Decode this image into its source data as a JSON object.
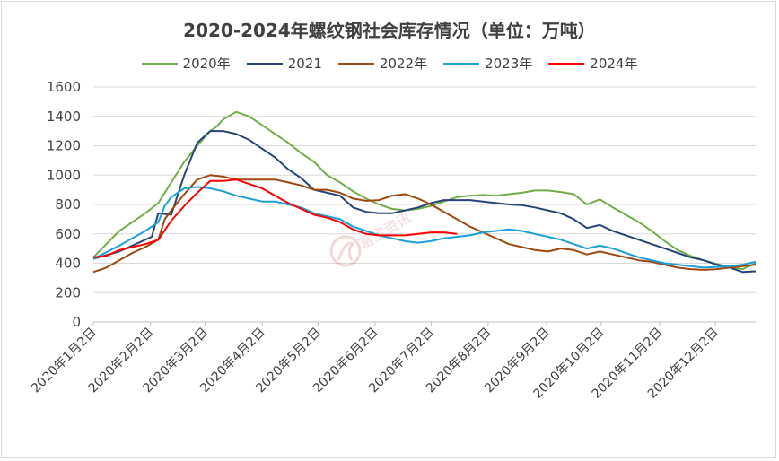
{
  "chart_data": {
    "type": "line",
    "title": "2020-2024年螺纹钢社会库存情况（单位：万吨）",
    "ylim": [
      0,
      1600
    ],
    "yticks": [
      0,
      200,
      400,
      600,
      800,
      1000,
      1200,
      1400,
      1600
    ],
    "grid": "horizontal",
    "legend_position": "top",
    "x_range": [
      0,
      51
    ],
    "x_tick_positions": [
      0,
      4.4,
      8.6,
      13,
      17.3,
      21.7,
      26,
      30.4,
      34.9,
      39.1,
      43.6,
      47.9
    ],
    "x_tick_labels": [
      "2020年1月2日",
      "2020年2月2日",
      "2020年3月2日",
      "2020年4月2日",
      "2020年5月2日",
      "2020年6月2日",
      "2020年7月2日",
      "2020年8月2日",
      "2020年9月2日",
      "2020年10月2日",
      "2020年11月2日",
      "2020年12月2日"
    ],
    "watermark": "富宝资讯",
    "series": [
      {
        "name": "2020年",
        "color": "#70ad47",
        "points": [
          [
            0,
            440
          ],
          [
            2,
            620
          ],
          [
            4,
            740
          ],
          [
            5,
            810
          ],
          [
            6,
            950
          ],
          [
            7,
            1090
          ],
          [
            8,
            1200
          ],
          [
            9,
            1300
          ],
          [
            9.5,
            1330
          ],
          [
            10,
            1380
          ],
          [
            11,
            1430
          ],
          [
            12,
            1400
          ],
          [
            13,
            1340
          ],
          [
            14,
            1280
          ],
          [
            15,
            1220
          ],
          [
            16,
            1150
          ],
          [
            17,
            1090
          ],
          [
            18,
            1000
          ],
          [
            19,
            950
          ],
          [
            20,
            890
          ],
          [
            21,
            840
          ],
          [
            22,
            800
          ],
          [
            23,
            770
          ],
          [
            24,
            760
          ],
          [
            25,
            770
          ],
          [
            26,
            790
          ],
          [
            27,
            820
          ],
          [
            28,
            850
          ],
          [
            29,
            860
          ],
          [
            30,
            865
          ],
          [
            31,
            860
          ],
          [
            32,
            870
          ],
          [
            33,
            880
          ],
          [
            34,
            895
          ],
          [
            35,
            895
          ],
          [
            36,
            885
          ],
          [
            37,
            870
          ],
          [
            38,
            800
          ],
          [
            39,
            835
          ],
          [
            40,
            780
          ],
          [
            41,
            730
          ],
          [
            42,
            680
          ],
          [
            43,
            620
          ],
          [
            44,
            550
          ],
          [
            45,
            490
          ],
          [
            46,
            450
          ],
          [
            47,
            420
          ],
          [
            48,
            395
          ],
          [
            49,
            375
          ],
          [
            50,
            360
          ],
          [
            51,
            400
          ]
        ]
      },
      {
        "name": "2021",
        "color": "#264478",
        "points": [
          [
            0,
            430
          ],
          [
            2,
            480
          ],
          [
            4,
            560
          ],
          [
            4.5,
            580
          ],
          [
            5,
            740
          ],
          [
            6,
            730
          ],
          [
            7,
            1000
          ],
          [
            8,
            1220
          ],
          [
            9,
            1300
          ],
          [
            10,
            1300
          ],
          [
            11,
            1280
          ],
          [
            12,
            1240
          ],
          [
            13,
            1180
          ],
          [
            14,
            1120
          ],
          [
            15,
            1040
          ],
          [
            16,
            980
          ],
          [
            17,
            900
          ],
          [
            18,
            880
          ],
          [
            19,
            860
          ],
          [
            20,
            780
          ],
          [
            21,
            750
          ],
          [
            22,
            740
          ],
          [
            23,
            740
          ],
          [
            24,
            760
          ],
          [
            25,
            780
          ],
          [
            26,
            810
          ],
          [
            27,
            830
          ],
          [
            28,
            830
          ],
          [
            29,
            830
          ],
          [
            30,
            820
          ],
          [
            31,
            810
          ],
          [
            32,
            800
          ],
          [
            33,
            795
          ],
          [
            34,
            780
          ],
          [
            35,
            760
          ],
          [
            36,
            740
          ],
          [
            37,
            700
          ],
          [
            38,
            640
          ],
          [
            39,
            660
          ],
          [
            40,
            620
          ],
          [
            41,
            590
          ],
          [
            42,
            560
          ],
          [
            43,
            530
          ],
          [
            44,
            500
          ],
          [
            45,
            470
          ],
          [
            46,
            440
          ],
          [
            47,
            420
          ],
          [
            48,
            390
          ],
          [
            49,
            370
          ],
          [
            50,
            340
          ],
          [
            51,
            345
          ]
        ]
      },
      {
        "name": "2022年",
        "color": "#9e480e",
        "points": [
          [
            0,
            340
          ],
          [
            1,
            370
          ],
          [
            2,
            420
          ],
          [
            3,
            470
          ],
          [
            4,
            510
          ],
          [
            5,
            560
          ],
          [
            5.5,
            700
          ],
          [
            6,
            760
          ],
          [
            7,
            870
          ],
          [
            8,
            970
          ],
          [
            9,
            1000
          ],
          [
            10,
            990
          ],
          [
            11,
            970
          ],
          [
            12,
            970
          ],
          [
            13,
            970
          ],
          [
            14,
            970
          ],
          [
            15,
            950
          ],
          [
            16,
            930
          ],
          [
            17,
            900
          ],
          [
            18,
            900
          ],
          [
            19,
            880
          ],
          [
            20,
            840
          ],
          [
            21,
            825
          ],
          [
            22,
            830
          ],
          [
            23,
            860
          ],
          [
            24,
            870
          ],
          [
            25,
            840
          ],
          [
            26,
            800
          ],
          [
            27,
            750
          ],
          [
            28,
            700
          ],
          [
            29,
            650
          ],
          [
            30,
            610
          ],
          [
            31,
            570
          ],
          [
            32,
            530
          ],
          [
            33,
            510
          ],
          [
            34,
            490
          ],
          [
            35,
            480
          ],
          [
            36,
            500
          ],
          [
            37,
            490
          ],
          [
            38,
            460
          ],
          [
            39,
            480
          ],
          [
            40,
            460
          ],
          [
            41,
            440
          ],
          [
            42,
            420
          ],
          [
            43,
            410
          ],
          [
            44,
            390
          ],
          [
            45,
            370
          ],
          [
            46,
            360
          ],
          [
            47,
            355
          ],
          [
            48,
            360
          ],
          [
            49,
            370
          ],
          [
            50,
            380
          ],
          [
            51,
            390
          ]
        ]
      },
      {
        "name": "2023年",
        "color": "#1ba0d8",
        "points": [
          [
            0,
            430
          ],
          [
            2,
            520
          ],
          [
            4,
            620
          ],
          [
            5,
            680
          ],
          [
            5.5,
            790
          ],
          [
            6,
            850
          ],
          [
            7,
            910
          ],
          [
            8,
            920
          ],
          [
            9,
            910
          ],
          [
            10,
            890
          ],
          [
            11,
            860
          ],
          [
            12,
            840
          ],
          [
            13,
            820
          ],
          [
            14,
            820
          ],
          [
            15,
            800
          ],
          [
            16,
            780
          ],
          [
            17,
            740
          ],
          [
            18,
            720
          ],
          [
            19,
            700
          ],
          [
            20,
            650
          ],
          [
            21,
            620
          ],
          [
            22,
            590
          ],
          [
            23,
            570
          ],
          [
            24,
            550
          ],
          [
            25,
            540
          ],
          [
            26,
            550
          ],
          [
            27,
            570
          ],
          [
            28,
            580
          ],
          [
            29,
            590
          ],
          [
            30,
            610
          ],
          [
            31,
            620
          ],
          [
            32,
            630
          ],
          [
            33,
            620
          ],
          [
            34,
            600
          ],
          [
            35,
            580
          ],
          [
            36,
            560
          ],
          [
            37,
            530
          ],
          [
            38,
            500
          ],
          [
            39,
            520
          ],
          [
            40,
            500
          ],
          [
            41,
            470
          ],
          [
            42,
            440
          ],
          [
            43,
            420
          ],
          [
            44,
            400
          ],
          [
            45,
            390
          ],
          [
            46,
            380
          ],
          [
            47,
            370
          ],
          [
            48,
            375
          ],
          [
            49,
            380
          ],
          [
            50,
            390
          ],
          [
            51,
            410
          ]
        ]
      },
      {
        "name": "2024年",
        "color": "#ff0000",
        "points": [
          [
            0,
            440
          ],
          [
            1,
            450
          ],
          [
            2,
            490
          ],
          [
            3,
            510
          ],
          [
            4,
            530
          ],
          [
            5,
            560
          ],
          [
            6,
            690
          ],
          [
            7,
            790
          ],
          [
            8,
            880
          ],
          [
            9,
            960
          ],
          [
            10,
            960
          ],
          [
            11,
            970
          ],
          [
            12,
            940
          ],
          [
            13,
            910
          ],
          [
            14,
            860
          ],
          [
            15,
            810
          ],
          [
            16,
            770
          ],
          [
            17,
            730
          ],
          [
            18,
            710
          ],
          [
            19,
            680
          ],
          [
            20,
            630
          ],
          [
            21,
            600
          ],
          [
            22,
            590
          ],
          [
            23,
            590
          ],
          [
            24,
            590
          ],
          [
            25,
            600
          ],
          [
            26,
            610
          ],
          [
            27,
            610
          ],
          [
            28,
            600
          ]
        ]
      }
    ]
  }
}
